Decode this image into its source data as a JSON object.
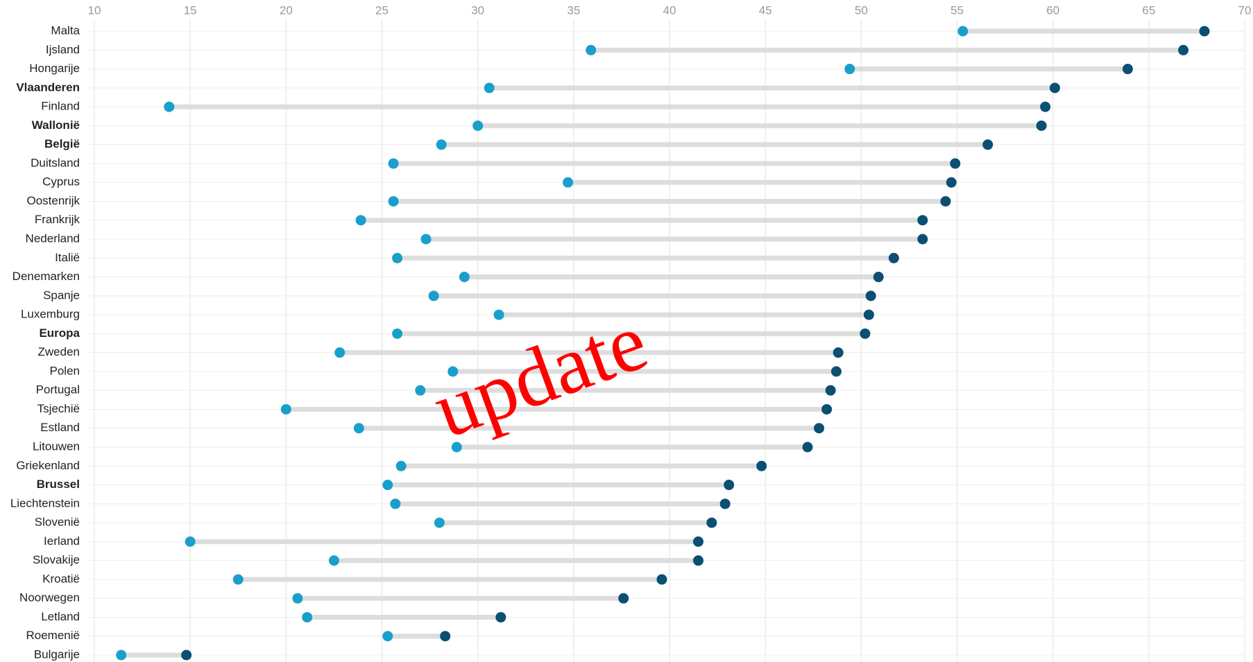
{
  "chart_data": {
    "type": "dumbbell",
    "categories": [
      "Malta",
      "Ijsland",
      "Hongarije",
      "Vlaanderen",
      "Finland",
      "Wallonië",
      "België",
      "Duitsland",
      "Cyprus",
      "Oostenrijk",
      "Frankrijk",
      "Nederland",
      "Italië",
      "Denemarken",
      "Spanje",
      "Luxemburg",
      "Europa",
      "Zweden",
      "Polen",
      "Portugal",
      "Tsjechië",
      "Estland",
      "Litouwen",
      "Griekenland",
      "Brussel",
      "Liechtenstein",
      "Slovenië",
      "Ierland",
      "Slovakije",
      "Kroatië",
      "Noorwegen",
      "Letland",
      "Roemenië",
      "Bulgarije"
    ],
    "highlight_indices": [
      3,
      5,
      6,
      16,
      24
    ],
    "series": [
      {
        "color": "#1a9fcc",
        "values": [
          55.3,
          35.9,
          49.4,
          30.6,
          13.9,
          30.0,
          28.1,
          25.6,
          34.7,
          25.6,
          23.9,
          27.3,
          25.8,
          29.3,
          27.7,
          31.1,
          25.8,
          22.8,
          28.7,
          27.0,
          20.0,
          23.8,
          28.9,
          26.0,
          25.3,
          25.7,
          28.0,
          15.0,
          22.5,
          17.5,
          20.6,
          21.1,
          25.3,
          11.4
        ]
      },
      {
        "color": "#0b4f73",
        "values": [
          67.9,
          66.8,
          63.9,
          60.1,
          59.6,
          59.4,
          56.6,
          54.9,
          54.7,
          54.4,
          53.2,
          53.2,
          51.7,
          50.9,
          50.5,
          50.4,
          50.2,
          48.8,
          48.7,
          48.4,
          48.2,
          47.8,
          47.2,
          44.8,
          43.1,
          42.9,
          42.2,
          41.5,
          41.5,
          39.6,
          37.6,
          31.2,
          28.3,
          14.8
        ]
      }
    ],
    "connector_color": "#dddddd",
    "xlim": [
      10,
      70
    ],
    "xticks": [
      10,
      15,
      20,
      25,
      30,
      35,
      40,
      45,
      50,
      55,
      60,
      65,
      70
    ],
    "grid": true,
    "annotation": "update",
    "annotation_color": "#ff0000"
  }
}
